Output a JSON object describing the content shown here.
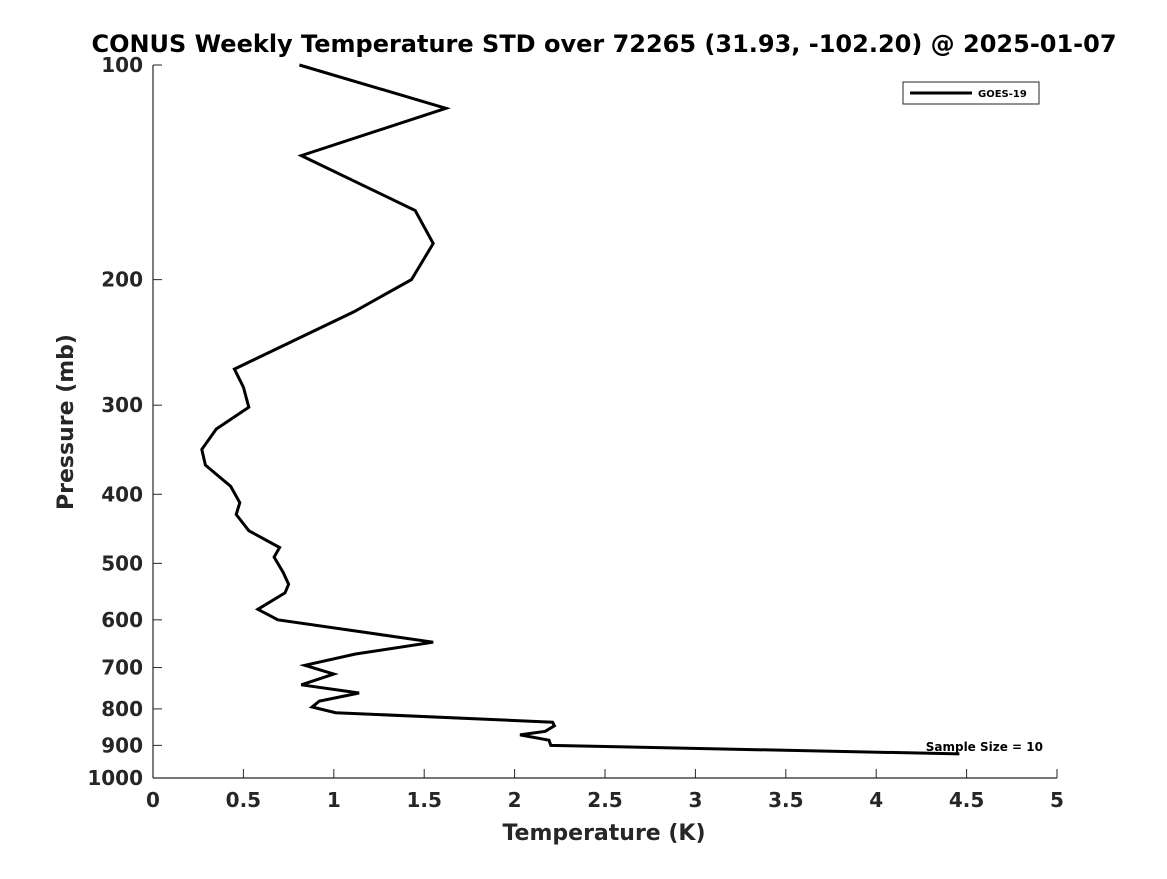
{
  "chart_data": {
    "type": "line",
    "title": "CONUS Weekly Temperature STD over 72265 (31.93, -102.20) @ 2025-01-07",
    "xlabel": "Temperature (K)",
    "ylabel": "Pressure (mb)",
    "xlim": [
      0,
      5
    ],
    "ylim": [
      100,
      1000
    ],
    "y_scale": "log",
    "y_reversed": true,
    "grid": false,
    "legend_position": "top-right",
    "x_ticks": [
      "0",
      "0.5",
      "1",
      "1.5",
      "2",
      "2.5",
      "3",
      "3.5",
      "4",
      "4.5",
      "5"
    ],
    "y_ticks": [
      "100",
      "200",
      "300",
      "400",
      "500",
      "600",
      "700",
      "800",
      "900",
      "1000"
    ],
    "annotation": "Sample Size = 10",
    "series": [
      {
        "name": "GOES-19",
        "color": "#000000",
        "points": [
          [
            0.81,
            100
          ],
          [
            1.62,
            115
          ],
          [
            0.82,
            134
          ],
          [
            1.45,
            160
          ],
          [
            1.55,
            178
          ],
          [
            1.43,
            200
          ],
          [
            1.11,
            222
          ],
          [
            0.45,
            267
          ],
          [
            0.5,
            283
          ],
          [
            0.53,
            302
          ],
          [
            0.35,
            324
          ],
          [
            0.27,
            346
          ],
          [
            0.29,
            364
          ],
          [
            0.43,
            390
          ],
          [
            0.48,
            411
          ],
          [
            0.46,
            427
          ],
          [
            0.53,
            450
          ],
          [
            0.7,
            475
          ],
          [
            0.67,
            490
          ],
          [
            0.72,
            515
          ],
          [
            0.75,
            535
          ],
          [
            0.73,
            550
          ],
          [
            0.58,
            580
          ],
          [
            0.69,
            600
          ],
          [
            1.55,
            645
          ],
          [
            1.12,
            670
          ],
          [
            0.84,
            695
          ],
          [
            1.0,
            715
          ],
          [
            0.82,
            740
          ],
          [
            1.14,
            760
          ],
          [
            0.92,
            780
          ],
          [
            0.88,
            795
          ],
          [
            1.01,
            810
          ],
          [
            2.21,
            835
          ],
          [
            2.22,
            845
          ],
          [
            2.17,
            860
          ],
          [
            2.03,
            870
          ],
          [
            2.19,
            885
          ],
          [
            2.2,
            900
          ],
          [
            4.46,
            925
          ]
        ]
      }
    ]
  }
}
